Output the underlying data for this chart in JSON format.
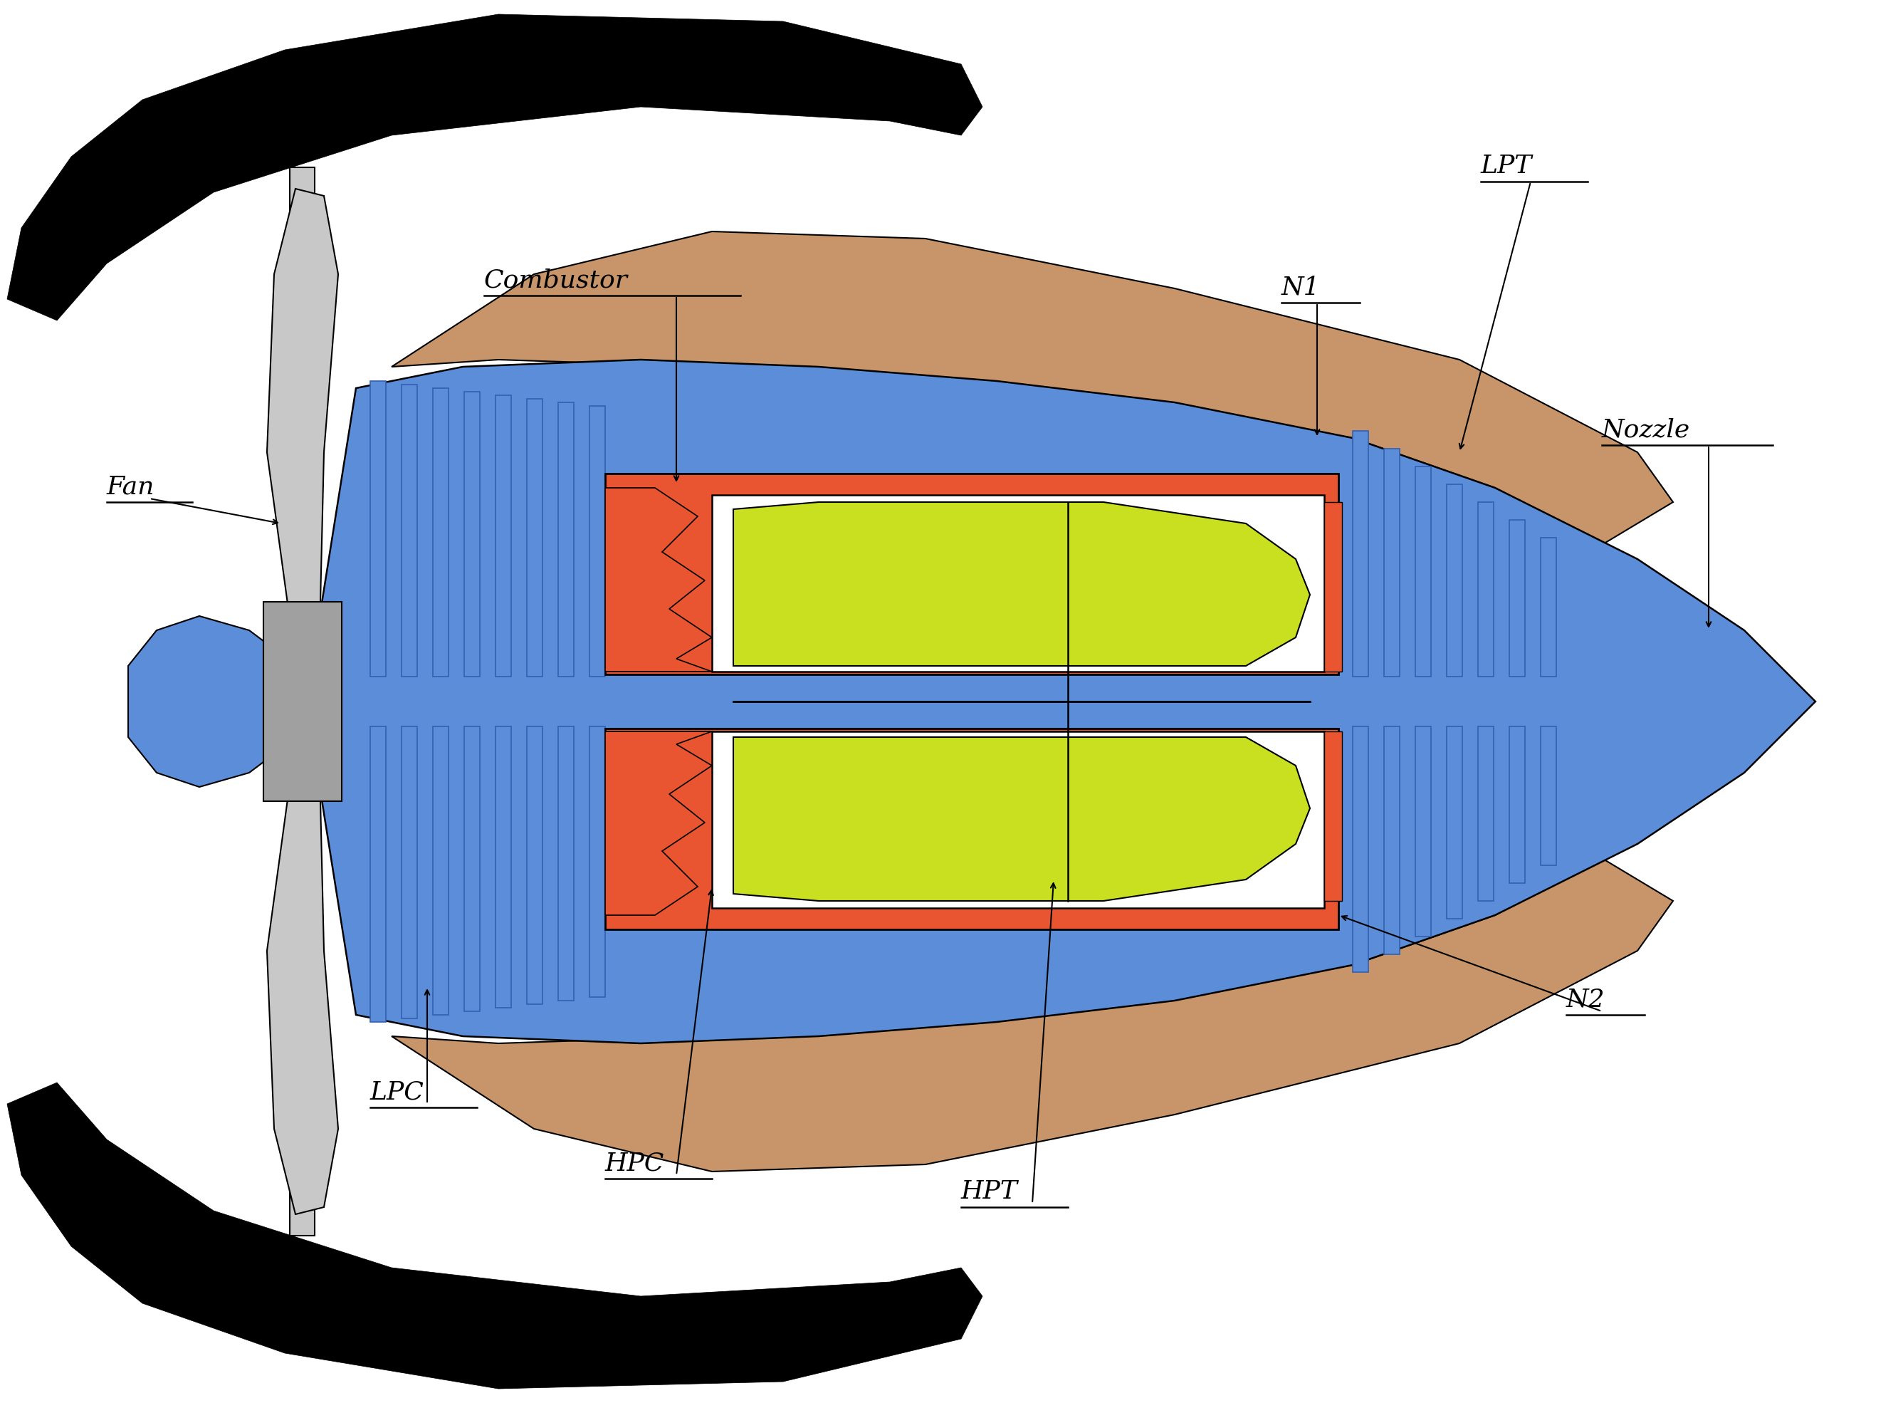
{
  "bg_color": "#ffffff",
  "blue": "#5b8dd9",
  "blue_dark": "#3060b0",
  "red": "#e85530",
  "yellow": "#c8e020",
  "brown": "#c8956a",
  "gray_light": "#c8c8c8",
  "gray_med": "#a0a0a0",
  "gray_dark": "#707070",
  "black": "#000000",
  "white": "#ffffff",
  "labels": [
    "Fan",
    "Combustor",
    "LPC",
    "HPC",
    "HPT",
    "LPT",
    "N1",
    "N2",
    "Nozzle"
  ],
  "font_size": 26
}
